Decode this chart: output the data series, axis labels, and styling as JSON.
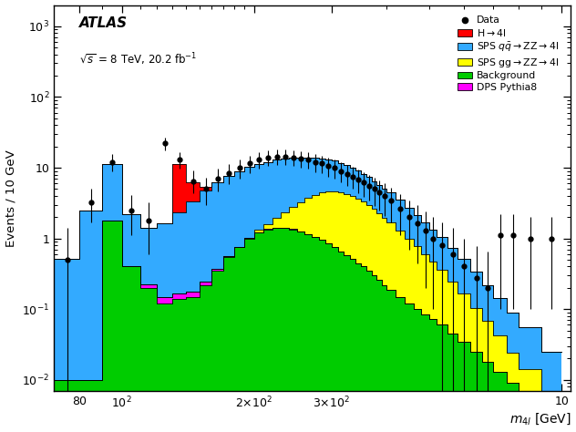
{
  "ylabel": "Events / 10 GeV",
  "xlim": [
    70,
    1050
  ],
  "ylim": [
    0.007,
    2000
  ],
  "bin_edges": [
    70,
    80,
    90,
    100,
    110,
    120,
    130,
    140,
    150,
    160,
    170,
    180,
    190,
    200,
    210,
    220,
    230,
    240,
    250,
    260,
    270,
    280,
    290,
    300,
    310,
    320,
    330,
    340,
    350,
    360,
    370,
    380,
    390,
    400,
    420,
    440,
    460,
    480,
    500,
    520,
    550,
    580,
    620,
    660,
    700,
    750,
    800,
    900,
    1000
  ],
  "background": [
    0.01,
    0.01,
    1.8,
    0.4,
    0.2,
    0.12,
    0.14,
    0.15,
    0.22,
    0.35,
    0.55,
    0.75,
    1.0,
    1.2,
    1.35,
    1.4,
    1.4,
    1.35,
    1.25,
    1.15,
    1.05,
    0.95,
    0.85,
    0.75,
    0.65,
    0.58,
    0.52,
    0.45,
    0.4,
    0.35,
    0.3,
    0.26,
    0.22,
    0.19,
    0.15,
    0.12,
    0.1,
    0.085,
    0.072,
    0.06,
    0.045,
    0.035,
    0.025,
    0.018,
    0.013,
    0.009,
    0.007,
    0.005
  ],
  "dps": [
    0.0,
    0.0,
    0.0,
    0.01,
    0.025,
    0.028,
    0.028,
    0.026,
    0.024,
    0.022,
    0.02,
    0.018,
    0.016,
    0.014,
    0.013,
    0.012,
    0.011,
    0.01,
    0.009,
    0.008,
    0.007,
    0.006,
    0.005,
    0.004,
    0.003,
    0.002,
    0.001,
    0.0,
    0.0,
    0.0,
    0.0,
    0.0,
    0.0,
    0.0,
    0.0,
    0.0,
    0.0,
    0.0,
    0.0,
    0.0,
    0.0,
    0.0,
    0.0,
    0.0,
    0.0,
    0.0,
    0.0,
    0.0
  ],
  "gg_zz": [
    0.0,
    0.0,
    0.0,
    0.0,
    0.0,
    0.0,
    0.0,
    0.0,
    0.0,
    0.0,
    0.0,
    0.0,
    0.0,
    0.1,
    0.25,
    0.55,
    0.9,
    1.4,
    2.0,
    2.6,
    3.1,
    3.5,
    3.8,
    3.9,
    3.9,
    3.7,
    3.5,
    3.2,
    2.9,
    2.6,
    2.3,
    2.0,
    1.75,
    1.5,
    1.15,
    0.88,
    0.68,
    0.52,
    0.4,
    0.3,
    0.2,
    0.13,
    0.08,
    0.05,
    0.03,
    0.015,
    0.007,
    0.002
  ],
  "qq_zz": [
    0.5,
    2.5,
    9.5,
    1.8,
    1.2,
    1.5,
    2.2,
    3.2,
    4.5,
    5.8,
    7.0,
    8.2,
    9.2,
    10.0,
    10.5,
    11.0,
    11.0,
    11.0,
    10.8,
    10.3,
    9.8,
    9.2,
    8.6,
    7.9,
    7.2,
    6.6,
    6.0,
    5.4,
    4.9,
    4.4,
    3.9,
    3.5,
    3.1,
    2.8,
    2.2,
    1.75,
    1.38,
    1.1,
    0.87,
    0.68,
    0.48,
    0.35,
    0.23,
    0.15,
    0.1,
    0.065,
    0.042,
    0.018
  ],
  "higgs": [
    0.0,
    0.0,
    0.0,
    0.0,
    0.0,
    0.0,
    9.0,
    2.8,
    0.55,
    0.15,
    0.05,
    0.02,
    0.01,
    0.0,
    0.0,
    0.0,
    0.0,
    0.0,
    0.0,
    0.0,
    0.0,
    0.0,
    0.0,
    0.0,
    0.0,
    0.0,
    0.0,
    0.0,
    0.0,
    0.0,
    0.0,
    0.0,
    0.0,
    0.0,
    0.0,
    0.0,
    0.0,
    0.0,
    0.0,
    0.0,
    0.0,
    0.0,
    0.0,
    0.0,
    0.0,
    0.0,
    0.0,
    0.0
  ],
  "data_x": [
    75,
    85,
    95,
    105,
    115,
    125,
    135,
    145,
    155,
    165,
    175,
    185,
    195,
    205,
    215,
    225,
    235,
    245,
    255,
    265,
    275,
    285,
    295,
    305,
    315,
    325,
    335,
    345,
    355,
    365,
    375,
    385,
    395,
    410,
    430,
    450,
    470,
    490,
    510,
    535,
    565,
    600,
    640,
    680,
    725,
    775,
    850,
    950
  ],
  "data_y": [
    0.5,
    3.2,
    12.0,
    2.5,
    1.8,
    22.0,
    13.0,
    6.5,
    5.0,
    7.0,
    8.5,
    10.0,
    11.5,
    13.0,
    14.0,
    14.5,
    14.5,
    14.0,
    13.5,
    13.0,
    12.0,
    11.5,
    10.5,
    10.0,
    9.0,
    8.2,
    7.5,
    6.8,
    6.2,
    5.6,
    5.0,
    4.5,
    4.0,
    3.4,
    2.6,
    2.0,
    1.65,
    1.3,
    1.0,
    0.8,
    0.6,
    0.4,
    0.28,
    0.2,
    1.1,
    1.1,
    1.0,
    1.0
  ],
  "data_yerr_up": [
    0.9,
    1.8,
    3.5,
    1.6,
    1.4,
    4.7,
    3.6,
    2.6,
    2.2,
    2.6,
    2.9,
    3.2,
    3.4,
    3.6,
    3.7,
    3.8,
    3.8,
    3.7,
    3.7,
    3.6,
    3.5,
    3.4,
    3.2,
    3.2,
    3.0,
    2.9,
    2.7,
    2.6,
    2.5,
    2.4,
    2.2,
    2.1,
    2.0,
    1.8,
    1.6,
    1.4,
    1.3,
    1.1,
    1.0,
    0.9,
    0.8,
    0.6,
    0.5,
    0.45,
    1.1,
    1.1,
    1.0,
    1.0
  ],
  "data_yerr_dn": [
    0.5,
    1.5,
    3.0,
    1.4,
    1.2,
    4.2,
    3.2,
    2.2,
    2.0,
    2.4,
    2.7,
    3.0,
    3.2,
    3.4,
    3.5,
    3.6,
    3.6,
    3.5,
    3.5,
    3.4,
    3.3,
    3.2,
    3.0,
    3.0,
    2.8,
    2.7,
    2.5,
    2.4,
    2.3,
    2.2,
    2.1,
    2.0,
    1.9,
    1.7,
    1.5,
    1.3,
    1.2,
    1.1,
    0.9,
    0.8,
    0.7,
    0.6,
    0.45,
    0.4,
    1.0,
    1.0,
    0.9,
    0.9
  ],
  "color_higgs": "#FF0000",
  "color_qq_zz": "#33AAFF",
  "color_gg_zz": "#FFFF00",
  "color_background": "#00CC00",
  "color_dps": "#FF00FF"
}
